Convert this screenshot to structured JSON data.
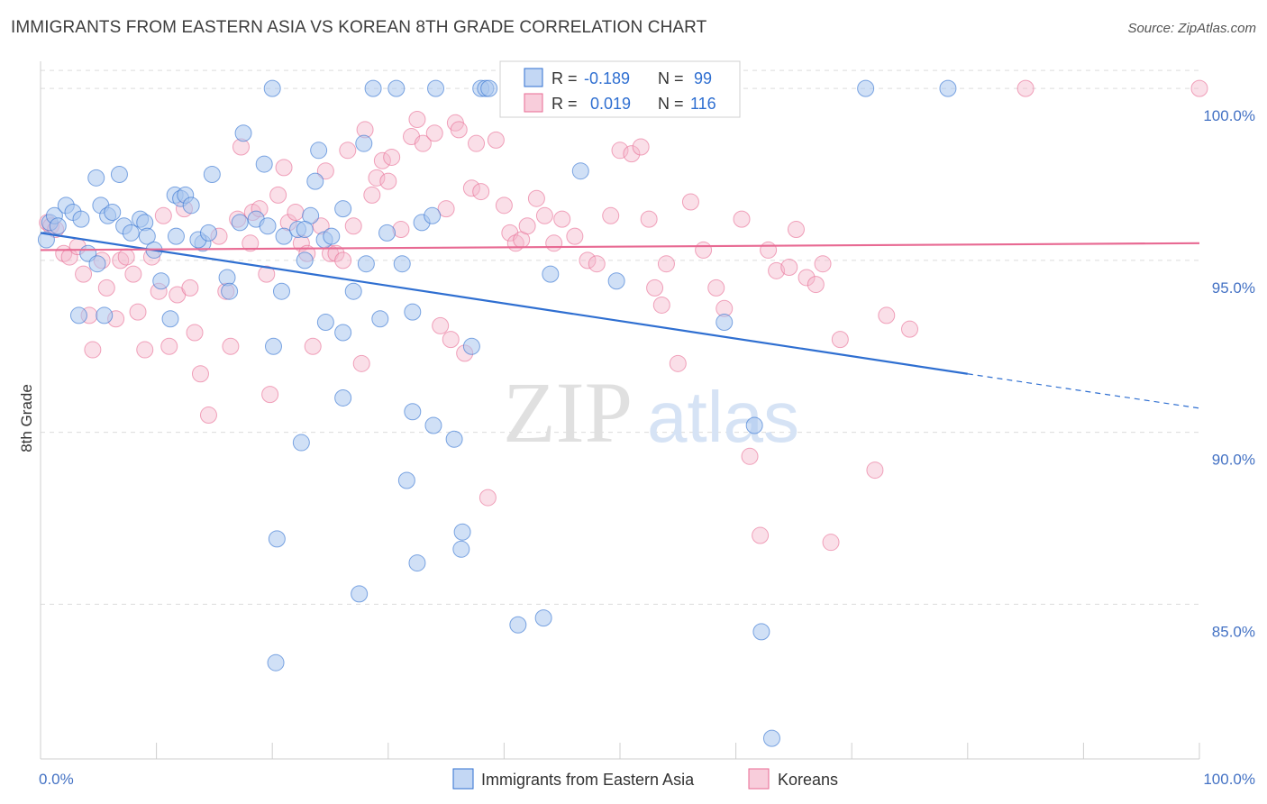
{
  "title": "IMMIGRANTS FROM EASTERN ASIA VS KOREAN 8TH GRADE CORRELATION CHART",
  "source": "Source: ZipAtlas.com",
  "watermark": {
    "zip": "ZIP",
    "atlas": "atlas"
  },
  "colors": {
    "blue_fill": "#a9c6ef",
    "blue_line": "#2f6fd1",
    "pink_fill": "#f5b8cc",
    "pink_line": "#e86a93",
    "tick_text": "#4472c4",
    "grid": "#dcdcdc"
  },
  "legend": {
    "rows": [
      {
        "r_label": "R =",
        "r_value": "-0.189",
        "n_label": "N =",
        "n_value": "99"
      },
      {
        "r_label": "R =",
        "r_value": "0.019",
        "n_label": "N =",
        "n_value": "116"
      }
    ]
  },
  "chart_data": {
    "type": "scatter",
    "ylabel": "8th Grade",
    "xlim": [
      0,
      100
    ],
    "ylim": [
      80.5,
      101
    ],
    "x_tick_labels": [
      "0.0%",
      "100.0%"
    ],
    "y_ticks": [
      {
        "value": 85,
        "label": "85.0%"
      },
      {
        "value": 90,
        "label": "90.0%"
      },
      {
        "value": 95,
        "label": "95.0%"
      },
      {
        "value": 100,
        "label": "100.0%"
      }
    ],
    "legend_position": "top-center",
    "grid": true,
    "series": [
      {
        "name": "Immigrants from Eastern Asia",
        "color": "#a9c6ef",
        "trend": {
          "x0": 0,
          "y0": 95.8,
          "x1": 80,
          "y1": 91.7,
          "x_dash_end": 100,
          "y_dash_end": 90.7
        },
        "points": [
          [
            0.5,
            95.6
          ],
          [
            0.8,
            96.1
          ],
          [
            1.2,
            96.3
          ],
          [
            1.5,
            96.0
          ],
          [
            2.2,
            96.6
          ],
          [
            2.8,
            96.4
          ],
          [
            3.5,
            96.2
          ],
          [
            4.1,
            95.2
          ],
          [
            4.8,
            97.4
          ],
          [
            5.2,
            96.6
          ],
          [
            5.8,
            96.3
          ],
          [
            6.2,
            96.4
          ],
          [
            3.3,
            93.4
          ],
          [
            4.9,
            94.9
          ],
          [
            5.5,
            93.4
          ],
          [
            6.8,
            97.5
          ],
          [
            7.2,
            96.0
          ],
          [
            7.8,
            95.8
          ],
          [
            8.6,
            96.2
          ],
          [
            9.0,
            96.1
          ],
          [
            9.2,
            95.7
          ],
          [
            9.8,
            95.3
          ],
          [
            10.4,
            94.4
          ],
          [
            11.2,
            93.3
          ],
          [
            11.6,
            96.9
          ],
          [
            12.1,
            96.8
          ],
          [
            11.7,
            95.7
          ],
          [
            12.5,
            96.9
          ],
          [
            13.0,
            96.6
          ],
          [
            14.0,
            95.5
          ],
          [
            13.6,
            95.6
          ],
          [
            14.8,
            97.5
          ],
          [
            16.1,
            94.5
          ],
          [
            16.3,
            94.1
          ],
          [
            14.5,
            95.8
          ],
          [
            17.2,
            96.1
          ],
          [
            17.5,
            98.7
          ],
          [
            18.6,
            96.2
          ],
          [
            19.6,
            96.0
          ],
          [
            19.3,
            97.8
          ],
          [
            20.1,
            92.5
          ],
          [
            21.0,
            95.7
          ],
          [
            22.2,
            95.9
          ],
          [
            22.8,
            95.0
          ],
          [
            23.3,
            96.3
          ],
          [
            24.0,
            98.2
          ],
          [
            23.7,
            97.3
          ],
          [
            24.5,
            95.6
          ],
          [
            22.5,
            89.7
          ],
          [
            20.4,
            86.9
          ],
          [
            20.3,
            83.3
          ],
          [
            22.8,
            95.9
          ],
          [
            24.6,
            93.2
          ],
          [
            25.1,
            95.7
          ],
          [
            26.1,
            96.5
          ],
          [
            26.1,
            92.9
          ],
          [
            27.9,
            98.4
          ],
          [
            28.1,
            94.9
          ],
          [
            29.3,
            93.3
          ],
          [
            29.9,
            95.8
          ],
          [
            31.2,
            94.9
          ],
          [
            32.1,
            93.5
          ],
          [
            32.9,
            96.1
          ],
          [
            33.8,
            96.3
          ],
          [
            32.1,
            90.6
          ],
          [
            33.9,
            90.2
          ],
          [
            31.6,
            88.6
          ],
          [
            35.7,
            89.8
          ],
          [
            37.2,
            92.5
          ],
          [
            32.5,
            86.2
          ],
          [
            36.3,
            86.6
          ],
          [
            36.4,
            87.1
          ],
          [
            26.1,
            91.0
          ],
          [
            27.0,
            94.1
          ],
          [
            27.5,
            85.3
          ],
          [
            20.8,
            94.1
          ],
          [
            30.7,
            100
          ],
          [
            38.0,
            100
          ],
          [
            44.2,
            100
          ],
          [
            41.2,
            84.4
          ],
          [
            43.4,
            84.6
          ],
          [
            46.6,
            97.6
          ],
          [
            44.0,
            94.6
          ],
          [
            49.7,
            94.4
          ],
          [
            59.0,
            93.2
          ],
          [
            61.6,
            90.2
          ],
          [
            62.2,
            84.2
          ],
          [
            63.1,
            81.1
          ],
          [
            71.2,
            100
          ],
          [
            78.3,
            100
          ],
          [
            20.0,
            100
          ],
          [
            28.7,
            100
          ],
          [
            34.1,
            100
          ],
          [
            41.9,
            100
          ],
          [
            48.7,
            100
          ],
          [
            50.0,
            100
          ],
          [
            54.2,
            100
          ],
          [
            38.4,
            100
          ],
          [
            38.7,
            100
          ]
        ]
      },
      {
        "name": "Koreans",
        "color": "#f5b8cc",
        "trend": {
          "x0": 0,
          "y0": 95.3,
          "x1": 100,
          "y1": 95.5
        },
        "points": [
          [
            0.6,
            96.1
          ],
          [
            0.9,
            96.0
          ],
          [
            1.3,
            95.9
          ],
          [
            2.0,
            95.2
          ],
          [
            2.5,
            95.1
          ],
          [
            3.2,
            95.4
          ],
          [
            3.7,
            94.6
          ],
          [
            4.2,
            93.4
          ],
          [
            4.5,
            92.4
          ],
          [
            5.3,
            95.0
          ],
          [
            5.7,
            94.2
          ],
          [
            6.5,
            93.3
          ],
          [
            6.9,
            95.0
          ],
          [
            7.4,
            95.1
          ],
          [
            8.0,
            94.6
          ],
          [
            8.4,
            93.5
          ],
          [
            9.0,
            92.4
          ],
          [
            9.6,
            95.1
          ],
          [
            10.2,
            94.1
          ],
          [
            10.6,
            96.3
          ],
          [
            11.1,
            92.5
          ],
          [
            11.8,
            94.0
          ],
          [
            12.4,
            96.5
          ],
          [
            12.9,
            94.2
          ],
          [
            13.3,
            92.9
          ],
          [
            13.8,
            91.7
          ],
          [
            14.5,
            90.5
          ],
          [
            15.4,
            95.7
          ],
          [
            16.0,
            94.1
          ],
          [
            16.4,
            92.5
          ],
          [
            17.0,
            96.2
          ],
          [
            17.3,
            98.3
          ],
          [
            18.1,
            95.5
          ],
          [
            18.3,
            96.4
          ],
          [
            18.9,
            96.5
          ],
          [
            19.5,
            94.6
          ],
          [
            19.8,
            91.1
          ],
          [
            20.5,
            96.9
          ],
          [
            21.0,
            97.7
          ],
          [
            21.4,
            96.1
          ],
          [
            22.0,
            96.4
          ],
          [
            22.5,
            95.5
          ],
          [
            23.0,
            95.2
          ],
          [
            23.5,
            92.5
          ],
          [
            24.2,
            96.0
          ],
          [
            24.6,
            97.6
          ],
          [
            25.0,
            95.2
          ],
          [
            25.5,
            95.2
          ],
          [
            26.1,
            95.0
          ],
          [
            26.5,
            98.2
          ],
          [
            27.0,
            96.0
          ],
          [
            27.7,
            92.0
          ],
          [
            28.0,
            98.8
          ],
          [
            28.6,
            96.9
          ],
          [
            29.0,
            97.4
          ],
          [
            29.5,
            97.9
          ],
          [
            30.0,
            97.3
          ],
          [
            30.3,
            98.0
          ],
          [
            31.1,
            95.9
          ],
          [
            32.0,
            98.6
          ],
          [
            32.5,
            99.1
          ],
          [
            33.0,
            98.4
          ],
          [
            34.0,
            98.7
          ],
          [
            34.5,
            93.1
          ],
          [
            35.0,
            96.5
          ],
          [
            35.4,
            92.7
          ],
          [
            35.8,
            99.0
          ],
          [
            36.1,
            98.8
          ],
          [
            36.6,
            92.3
          ],
          [
            37.2,
            97.1
          ],
          [
            37.6,
            98.4
          ],
          [
            38.0,
            97.0
          ],
          [
            38.6,
            88.1
          ],
          [
            39.3,
            98.5
          ],
          [
            40.0,
            96.6
          ],
          [
            40.5,
            95.8
          ],
          [
            41.0,
            95.5
          ],
          [
            41.5,
            95.6
          ],
          [
            42.0,
            96.0
          ],
          [
            42.8,
            96.8
          ],
          [
            43.5,
            96.3
          ],
          [
            44.3,
            95.5
          ],
          [
            45.0,
            96.2
          ],
          [
            46.1,
            95.7
          ],
          [
            47.2,
            95.0
          ],
          [
            48.0,
            94.9
          ],
          [
            49.2,
            96.3
          ],
          [
            50.0,
            98.2
          ],
          [
            51.0,
            98.1
          ],
          [
            51.8,
            98.3
          ],
          [
            52.5,
            96.2
          ],
          [
            53.0,
            94.2
          ],
          [
            53.6,
            93.7
          ],
          [
            54.0,
            94.9
          ],
          [
            55.0,
            92.0
          ],
          [
            56.1,
            96.7
          ],
          [
            57.2,
            95.3
          ],
          [
            58.3,
            94.2
          ],
          [
            59.0,
            93.6
          ],
          [
            60.5,
            96.2
          ],
          [
            61.2,
            89.3
          ],
          [
            62.1,
            87.0
          ],
          [
            62.8,
            95.3
          ],
          [
            63.5,
            94.7
          ],
          [
            64.6,
            94.8
          ],
          [
            65.2,
            95.9
          ],
          [
            66.1,
            94.5
          ],
          [
            66.9,
            94.3
          ],
          [
            67.5,
            94.9
          ],
          [
            68.2,
            86.8
          ],
          [
            69.0,
            92.7
          ],
          [
            72.0,
            88.9
          ],
          [
            73.0,
            93.4
          ],
          [
            75.0,
            93.0
          ],
          [
            85.0,
            100
          ],
          [
            100.0,
            100
          ]
        ]
      }
    ]
  }
}
